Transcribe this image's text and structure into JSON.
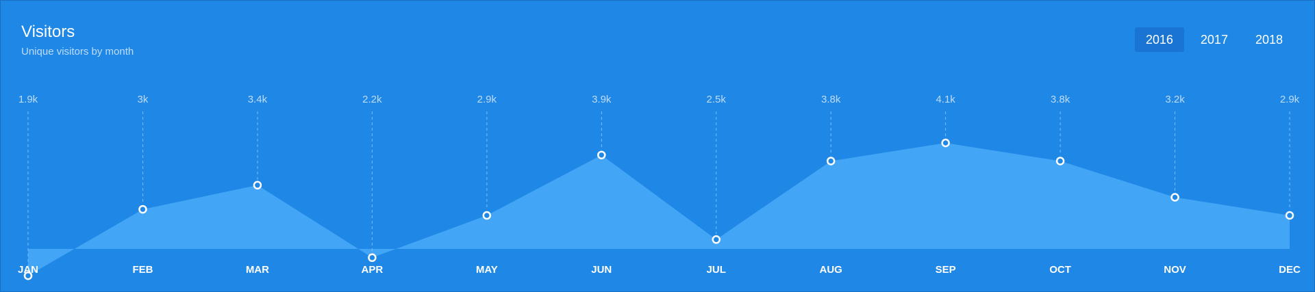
{
  "widget": {
    "title": "Visitors",
    "subtitle": "Unique visitors by month"
  },
  "year_tabs": [
    {
      "label": "2016",
      "active": true
    },
    {
      "label": "2017",
      "active": false
    },
    {
      "label": "2018",
      "active": false
    }
  ],
  "colors": {
    "background": "#1f87e5",
    "area_fill": "#42a5f5",
    "point_fill": "#1f87e5",
    "point_stroke": "#ffffff",
    "guide_line": "#7fbdf3",
    "active_tab": "#1a74d3"
  },
  "chart_data": {
    "type": "area",
    "title": "Visitors",
    "subtitle": "Unique visitors by month",
    "categories": [
      "JAN",
      "FEB",
      "MAR",
      "APR",
      "MAY",
      "JUN",
      "JUL",
      "AUG",
      "SEP",
      "OCT",
      "NOV",
      "DEC"
    ],
    "values": [
      1900,
      3000,
      3400,
      2200,
      2900,
      3900,
      2500,
      3800,
      4100,
      3800,
      3200,
      2900
    ],
    "value_labels": [
      "1.9k",
      "3k",
      "3.4k",
      "2.2k",
      "2.9k",
      "3.9k",
      "2.5k",
      "3.8k",
      "4.1k",
      "3.8k",
      "3.2k",
      "2.9k"
    ],
    "grid": false,
    "legend": "none"
  }
}
